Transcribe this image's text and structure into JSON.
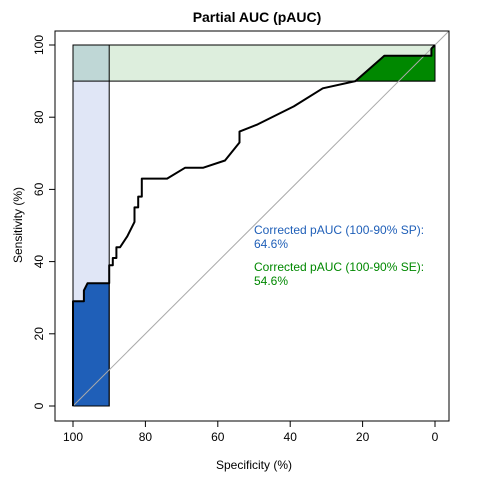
{
  "chart_data": {
    "type": "line",
    "title": "Partial AUC (pAUC)",
    "xlabel": "Specificity (%)",
    "ylabel": "Sensitivity (%)",
    "xlim": [
      100,
      0
    ],
    "ylim": [
      0,
      100
    ],
    "x_reversed": true,
    "grid": false,
    "xticks": [
      100,
      80,
      60,
      40,
      20,
      0
    ],
    "yticks": [
      0,
      20,
      40,
      60,
      80,
      100
    ],
    "xtick_labels": [
      "100",
      "80",
      "60",
      "40",
      "20",
      "0"
    ],
    "ytick_labels": [
      "0",
      "20",
      "40",
      "60",
      "80",
      "100"
    ],
    "series": [
      {
        "x": [
          100,
          100,
          97,
          97,
          96,
          90,
          90,
          89,
          89,
          88,
          88,
          87,
          85,
          83,
          83,
          82,
          82,
          81,
          81,
          74,
          69,
          64,
          58,
          54,
          54,
          49,
          39,
          31,
          22,
          14,
          1,
          1,
          0
        ],
        "y": [
          0,
          29,
          29,
          32,
          34,
          34,
          39,
          39,
          41,
          41,
          44,
          44,
          47,
          51,
          55,
          55,
          58,
          58,
          63,
          63,
          66,
          66,
          68,
          73,
          76,
          78,
          83,
          88,
          90,
          97,
          97,
          99,
          100
        ]
      }
    ],
    "diagonal": {
      "from": [
        100,
        0
      ],
      "to": [
        0,
        100
      ],
      "color": "#aaaaaa"
    },
    "regions": {
      "sp_range": [
        100,
        90
      ],
      "se_range": [
        90,
        100
      ],
      "sp_band_color": "#e0e6f6",
      "se_band_color": "#ddeedd",
      "overlap_color": "#bfd7d6",
      "sp_fill_color": "#1f5fb8",
      "se_fill_color": "#008800"
    },
    "annotations": [
      {
        "lines": [
          "Corrected pAUC (100-90% SP):",
          "64.6%"
        ],
        "color": "#1f5fb8"
      },
      {
        "lines": [
          "Corrected pAUC (100-90% SE):",
          "54.6%"
        ],
        "color": "#008800"
      }
    ]
  }
}
